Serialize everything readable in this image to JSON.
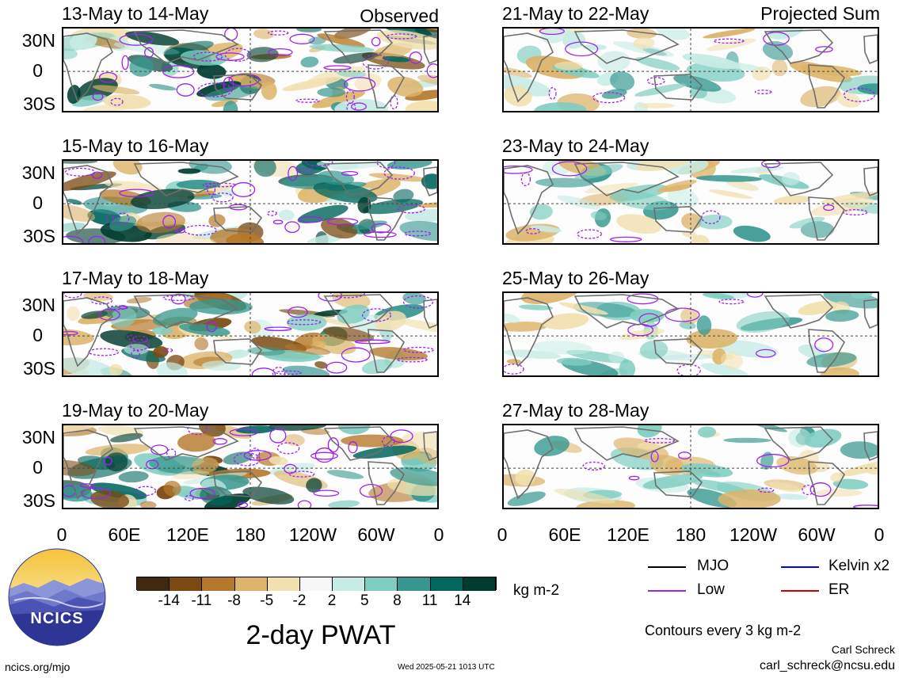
{
  "left_column": {
    "heading": "Observed",
    "panels": [
      {
        "title": "13-May to 14-May"
      },
      {
        "title": "15-May to 16-May"
      },
      {
        "title": "17-May to 18-May"
      },
      {
        "title": "19-May to 20-May"
      }
    ]
  },
  "right_column": {
    "heading": "Projected Sum",
    "panels": [
      {
        "title": "21-May to 22-May"
      },
      {
        "title": "23-May to 24-May"
      },
      {
        "title": "25-May to 26-May"
      },
      {
        "title": "27-May to 28-May"
      }
    ]
  },
  "lat_ticks": [
    "30N",
    "0",
    "30S"
  ],
  "lon_ticks": [
    "0",
    "60E",
    "120E",
    "180",
    "120W",
    "60W",
    "0"
  ],
  "colorbar": {
    "labels": [
      "-14",
      "-11",
      "-8",
      "-5",
      "-2",
      "2",
      "5",
      "8",
      "11",
      "14"
    ],
    "colors": [
      "#3f2a10",
      "#7b4a12",
      "#b5782a",
      "#dcb46a",
      "#f1e0b0",
      "#f7f7f7",
      "#c7ebe5",
      "#7fcdc1",
      "#35978f",
      "#01665e",
      "#003c30"
    ],
    "units": "kg m-2"
  },
  "chart_title": "2-day PWAT",
  "legend": {
    "items": [
      {
        "label": "MJO",
        "color": "#000000"
      },
      {
        "label": "Kelvin x2",
        "color": "#0000ff"
      },
      {
        "label": "Low",
        "color": "#a020f0"
      },
      {
        "label": "ER",
        "color": "#cc0000"
      }
    ],
    "note": "Contours every 3 kg m-2"
  },
  "footer": {
    "site": "ncics.org/mjo",
    "timestamp": "Wed 2025-05-21 1013 UTC",
    "author": "Carl Schreck",
    "email": "carl_schreck@ncsu.edu",
    "logo_text": "NCICS"
  }
}
